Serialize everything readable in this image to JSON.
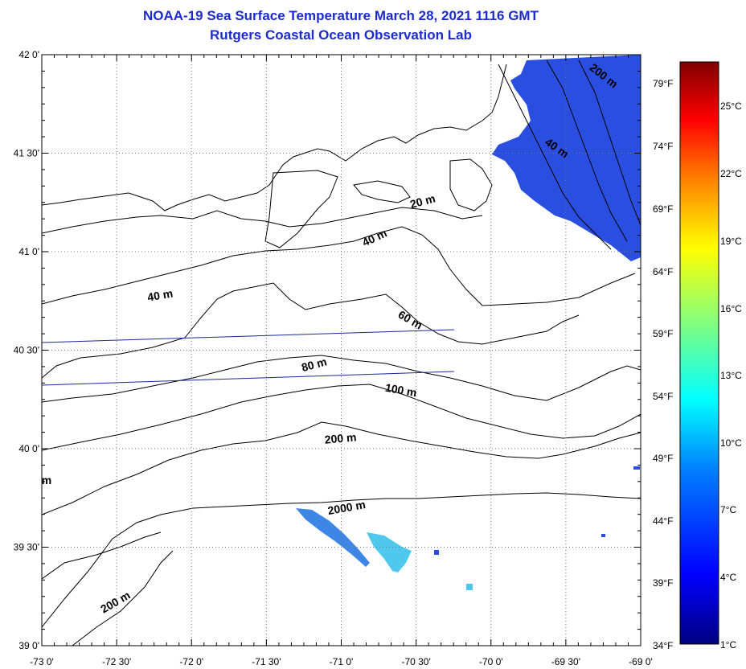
{
  "title": "NOAA-19 Sea Surface Temperature March 28, 2021 1116 GMT",
  "subtitle": "Rutgers Coastal Ocean Observation Lab",
  "map": {
    "lon_range": [
      -73,
      -69
    ],
    "lat_range": [
      39,
      42
    ],
    "lon_ticks": [
      "-73 0'",
      "-72 30'",
      "-72 0'",
      "-71 30'",
      "-71 0'",
      "-70 30'",
      "-70 0'",
      "-69 30'",
      "-69 0'"
    ],
    "lat_ticks": [
      "42 0'",
      "41 30'",
      "41 0'",
      "40 30'",
      "40 0'",
      "39 30'",
      "39 0'"
    ],
    "grid": "dotted",
    "contour_labels": [
      "200 m",
      "40 m",
      "20 m",
      "40 m",
      "40 m",
      "60 m",
      "80 m",
      "100 m",
      "200 m",
      "2000 m",
      "200 m",
      "m"
    ]
  },
  "colorbar": {
    "fahrenheit_labels": [
      "79°F",
      "74°F",
      "69°F",
      "64°F",
      "59°F",
      "54°F",
      "49°F",
      "44°F",
      "39°F",
      "34°F"
    ],
    "celsius_labels": [
      "25°C",
      "22°C",
      "19°C",
      "16°C",
      "13°C",
      "10°C",
      "7°C",
      "4°C",
      "1°C"
    ],
    "colors": [
      "#000080",
      "#0000ff",
      "#0080ff",
      "#00ffff",
      "#80ff80",
      "#ffff00",
      "#ff8000",
      "#ff0000",
      "#800000"
    ]
  },
  "colors": {
    "land": "#ffffff",
    "sst_cold": "#2a4fe0",
    "sst_warm_patch": "#4fc8ee",
    "title": "#1c2bd0",
    "track_line": "#1a2a9a"
  }
}
